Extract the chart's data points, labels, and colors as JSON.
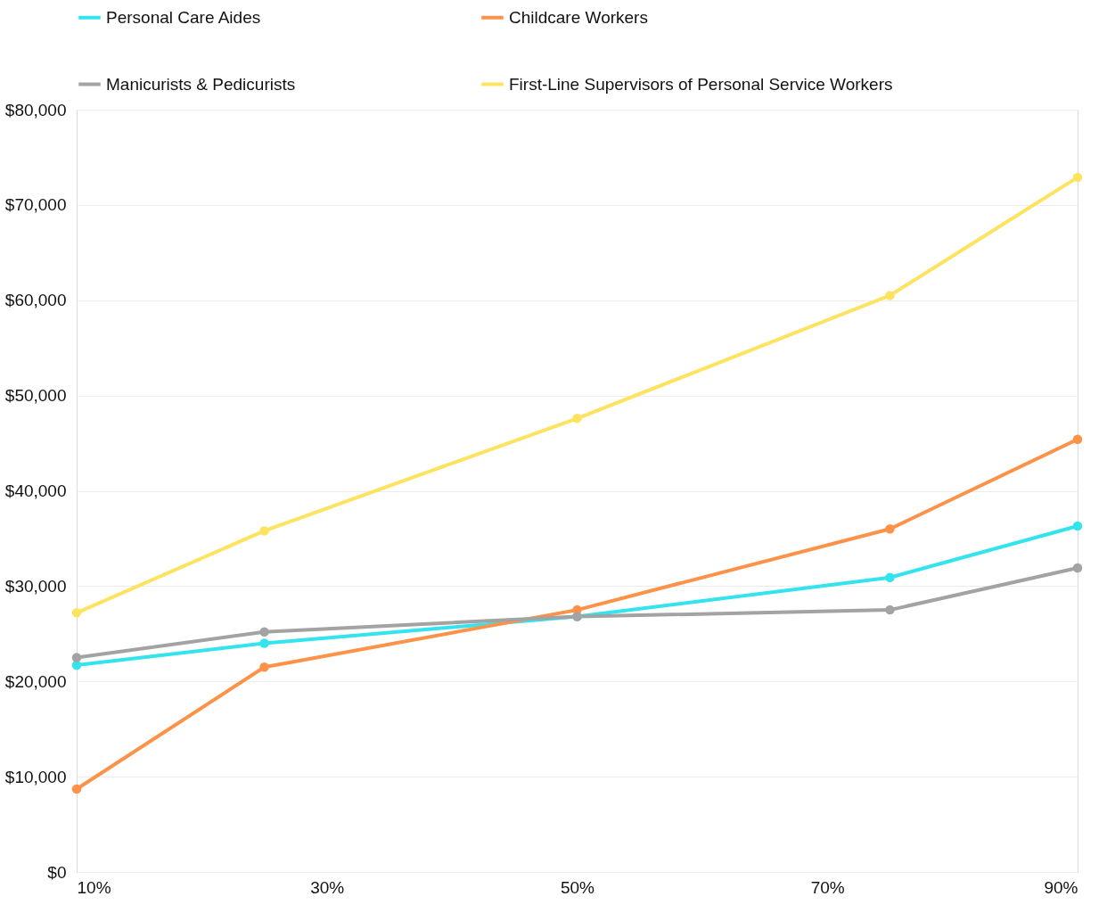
{
  "chart_data": {
    "type": "line",
    "x": [
      10,
      25,
      50,
      75,
      90
    ],
    "xlim": [
      10,
      90
    ],
    "xticks": [
      {
        "value": 10,
        "label": "10%"
      },
      {
        "value": 30,
        "label": "30%"
      },
      {
        "value": 50,
        "label": "50%"
      },
      {
        "value": 70,
        "label": "70%"
      },
      {
        "value": 90,
        "label": "90%"
      }
    ],
    "ylim": [
      0,
      80000
    ],
    "yticks": [
      {
        "value": 0,
        "label": "$0"
      },
      {
        "value": 10000,
        "label": "$10,000"
      },
      {
        "value": 20000,
        "label": "$20,000"
      },
      {
        "value": 30000,
        "label": "$30,000"
      },
      {
        "value": 40000,
        "label": "$40,000"
      },
      {
        "value": 50000,
        "label": "$50,000"
      },
      {
        "value": 60000,
        "label": "$60,000"
      },
      {
        "value": 70000,
        "label": "$70,000"
      },
      {
        "value": 80000,
        "label": "$80,000"
      }
    ],
    "grid": "y",
    "legend": "top",
    "marker": "circle",
    "line_style": "solid",
    "series": [
      {
        "name": "Personal Care Aides",
        "color": "#33e3ee",
        "values": [
          21700,
          24000,
          26800,
          30900,
          36300
        ]
      },
      {
        "name": "Childcare Workers",
        "color": "#fd9248",
        "values": [
          8700,
          21500,
          27500,
          36000,
          45400
        ]
      },
      {
        "name": "Manicurists & Pedicurists",
        "color": "#a3a3a3",
        "values": [
          22500,
          25200,
          26800,
          27500,
          31900
        ]
      },
      {
        "name": "First-Line Supervisors of Personal Service Workers",
        "color": "#fde35f",
        "values": [
          27200,
          35800,
          47600,
          60500,
          72900
        ]
      }
    ]
  }
}
